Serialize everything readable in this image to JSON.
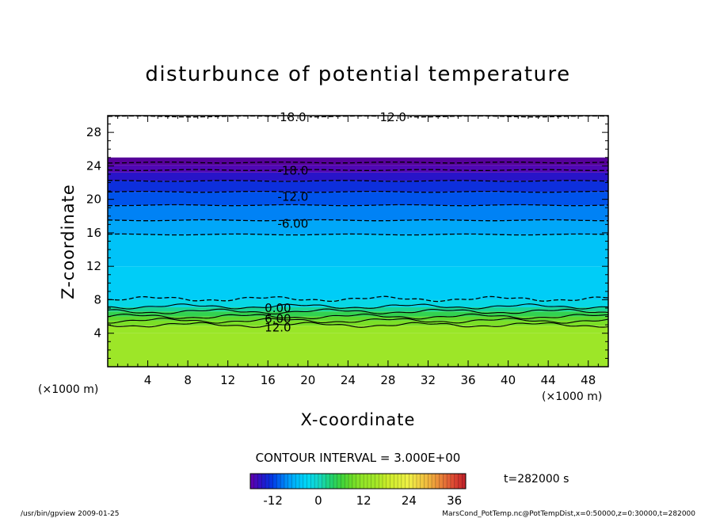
{
  "chart_data": {
    "type": "heatmap",
    "title": "disturbunce of potential temperature",
    "xlabel": "X-coordinate",
    "ylabel": "Z-coordinate",
    "x_unit": "(×1000 m)",
    "y_unit": "(×1000 m)",
    "xlim": [
      0,
      50
    ],
    "ylim": [
      0,
      30
    ],
    "xticks": [
      4,
      8,
      12,
      16,
      20,
      24,
      28,
      32,
      36,
      40,
      44,
      48
    ],
    "yticks": [
      4,
      8,
      12,
      16,
      20,
      24,
      28
    ],
    "grid": false,
    "contour_interval_text": "CONTOUR INTERVAL = 3.000E+00",
    "time_label": "t=282000 s",
    "colorbar": {
      "min": -18,
      "max": 39,
      "step": 3,
      "ticks": [
        -12,
        0,
        12,
        24,
        36
      ]
    },
    "contour_labels": [
      {
        "text": "18.0",
        "x": 18.5,
        "z": 29.9
      },
      {
        "text": "12.0",
        "x": 28.5,
        "z": 29.9
      },
      {
        "text": "-18.0",
        "x": 18.5,
        "z": 23.5
      },
      {
        "text": "-12.0",
        "x": 18.5,
        "z": 20.4
      },
      {
        "text": "-6.00",
        "x": 18.5,
        "z": 17.2
      },
      {
        "text": "0.00",
        "x": 17.0,
        "z": 7.1
      },
      {
        "text": "6.00",
        "x": 17.0,
        "z": 5.8
      },
      {
        "text": "12.0",
        "x": 17.0,
        "z": 4.8
      }
    ],
    "layers": [
      {
        "z0": 0.0,
        "z1": 4.0,
        "value": 14
      },
      {
        "z0": 4.0,
        "z1": 4.9,
        "value": 13
      },
      {
        "z0": 4.9,
        "z1": 5.5,
        "value": 10
      },
      {
        "z0": 5.5,
        "z1": 6.0,
        "value": 8
      },
      {
        "z0": 6.0,
        "z1": 6.6,
        "value": 5
      },
      {
        "z0": 6.6,
        "z1": 7.1,
        "value": 2
      },
      {
        "z0": 7.1,
        "z1": 8.0,
        "value": -2
      },
      {
        "z0": 8.0,
        "z1": 12.0,
        "value": -4
      },
      {
        "z0": 12.0,
        "z1": 15.8,
        "value": -5
      },
      {
        "z0": 15.8,
        "z1": 17.5,
        "value": -7
      },
      {
        "z0": 17.5,
        "z1": 19.3,
        "value": -9
      },
      {
        "z0": 19.3,
        "z1": 20.9,
        "value": -11
      },
      {
        "z0": 20.9,
        "z1": 22.2,
        "value": -13
      },
      {
        "z0": 22.2,
        "z1": 23.2,
        "value": -15
      },
      {
        "z0": 23.2,
        "z1": 24.1,
        "value": -17
      },
      {
        "z0": 24.1,
        "z1": 25.0,
        "value": -19
      }
    ],
    "contours": [
      {
        "z": 5.0,
        "value": 12,
        "style": "solid"
      },
      {
        "z": 5.5,
        "value": 9,
        "style": "solid"
      },
      {
        "z": 6.0,
        "value": 6,
        "style": "solid"
      },
      {
        "z": 6.6,
        "value": 3,
        "style": "solid"
      },
      {
        "z": 7.2,
        "value": 0,
        "style": "solid"
      },
      {
        "z": 8.1,
        "value": -3,
        "style": "dashed"
      },
      {
        "z": 15.8,
        "value": -3,
        "style": "dashed"
      },
      {
        "z": 17.5,
        "value": -6,
        "style": "dashed"
      },
      {
        "z": 19.3,
        "value": -9,
        "style": "dashed"
      },
      {
        "z": 20.9,
        "value": -12,
        "style": "dashed"
      },
      {
        "z": 22.2,
        "value": -15,
        "style": "dashed"
      },
      {
        "z": 23.5,
        "value": -18,
        "style": "dashed"
      },
      {
        "z": 24.4,
        "value": -21,
        "style": "dashed"
      },
      {
        "z": 29.9,
        "value": 12,
        "style": "dashed"
      }
    ]
  },
  "footer": {
    "left": "/usr/bin/gpview   2009-01-25",
    "right": "MarsCond_PotTemp.nc@PotTempDist,x=0:50000,z=0:30000,t=282000"
  }
}
